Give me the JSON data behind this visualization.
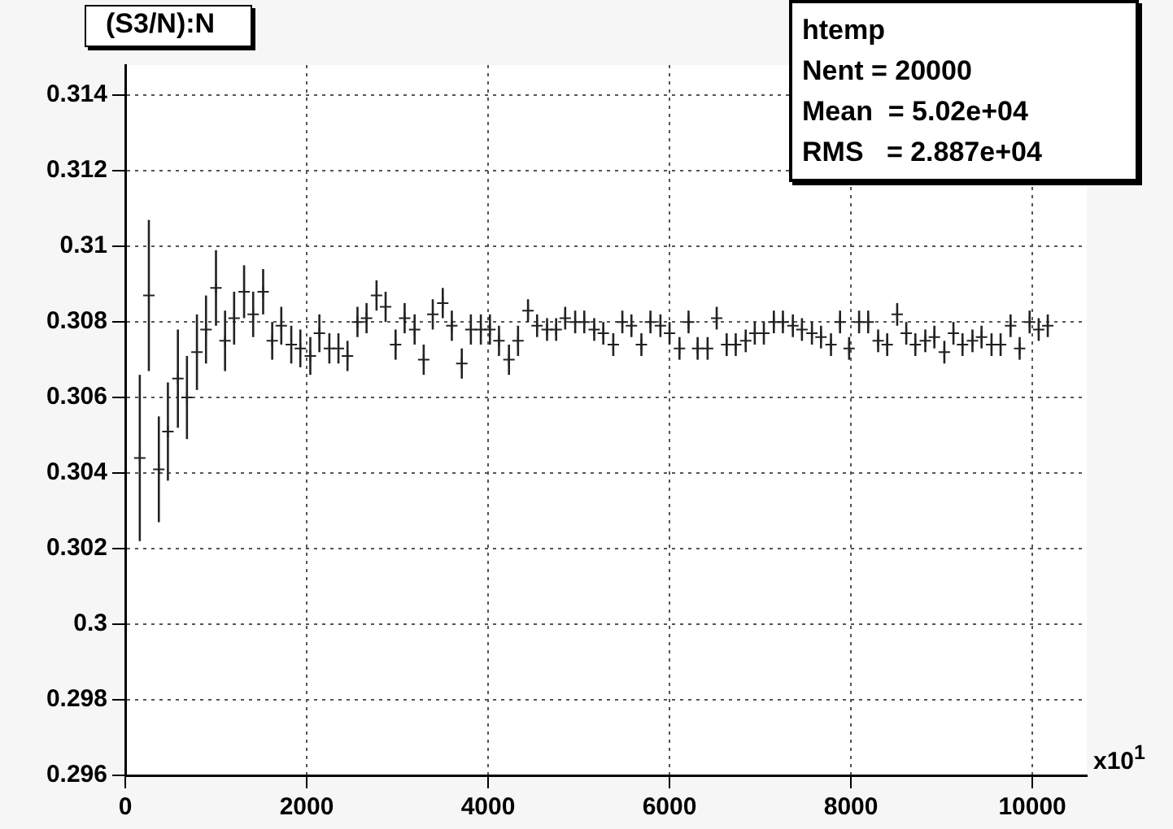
{
  "chart_data": {
    "type": "scatter",
    "title": "(S3/N):N",
    "marker": "cross",
    "grid": true,
    "legend": false,
    "annotations": [
      "htemp",
      "Nent = 20000",
      "Mean  = 5.02e+04",
      "RMS   = 2.887e+04",
      "x10$^{1}$"
    ],
    "xlim": [
      0,
      10600
    ],
    "xticks": [
      0,
      2000,
      4000,
      6000,
      8000,
      10000
    ],
    "ylim": [
      0.296,
      0.3148
    ],
    "yticks": [
      0.296,
      0.298,
      0.3,
      0.302,
      0.304,
      0.306,
      0.308,
      0.31,
      0.312,
      0.314
    ],
    "x": [
      160,
      260,
      370,
      470,
      580,
      680,
      790,
      890,
      1000,
      1100,
      1200,
      1310,
      1410,
      1520,
      1620,
      1720,
      1830,
      1930,
      2040,
      2140,
      2250,
      2350,
      2450,
      2560,
      2660,
      2770,
      2870,
      2980,
      3080,
      3190,
      3290,
      3390,
      3500,
      3600,
      3710,
      3810,
      3920,
      4020,
      4120,
      4230,
      4330,
      4440,
      4540,
      4650,
      4750,
      4850,
      4960,
      5060,
      5170,
      5270,
      5380,
      5480,
      5580,
      5690,
      5790,
      5900,
      6000,
      6110,
      6210,
      6310,
      6420,
      6520,
      6630,
      6730,
      6840,
      6940,
      7040,
      7150,
      7250,
      7360,
      7460,
      7570,
      7670,
      7780,
      7880,
      7980,
      8090,
      8190,
      8300,
      8400,
      8510,
      8610,
      8710,
      8820,
      8920,
      9030,
      9130,
      9230,
      9340,
      9440,
      9550,
      9650,
      9760,
      9860,
      9970,
      10070,
      10170
    ],
    "series": [
      {
        "color": "#222222",
        "values": [
          0.3044,
          0.3087,
          0.3041,
          0.3051,
          0.3065,
          0.306,
          0.3072,
          0.3078,
          0.3089,
          0.3075,
          0.3081,
          0.3088,
          0.3082,
          0.3088,
          0.3075,
          0.3079,
          0.3074,
          0.3073,
          0.3071,
          0.3077,
          0.3073,
          0.3073,
          0.3071,
          0.308,
          0.3081,
          0.3087,
          0.3084,
          0.3074,
          0.3081,
          0.3078,
          0.307,
          0.3082,
          0.3085,
          0.3079,
          0.3069,
          0.3078,
          0.3078,
          0.3078,
          0.3075,
          0.307,
          0.3075,
          0.3083,
          0.3079,
          0.3078,
          0.3078,
          0.3081,
          0.308,
          0.308,
          0.3078,
          0.3077,
          0.3074,
          0.308,
          0.3079,
          0.3074,
          0.308,
          0.3079,
          0.3077,
          0.3073,
          0.308,
          0.3073,
          0.3073,
          0.3081,
          0.3074,
          0.3074,
          0.3075,
          0.3077,
          0.3077,
          0.308,
          0.308,
          0.3079,
          0.3078,
          0.3077,
          0.3076,
          0.3074,
          0.308,
          0.3073,
          0.308,
          0.308,
          0.3075,
          0.3074,
          0.3082,
          0.3077,
          0.3074,
          0.3075,
          0.3076,
          0.3072,
          0.3077,
          0.3074,
          0.3075,
          0.3076,
          0.3074,
          0.3074,
          0.3079,
          0.3073,
          0.308,
          0.3078,
          0.3079
        ],
        "errors": [
          0.0022,
          0.002,
          0.0014,
          0.0013,
          0.0013,
          0.0011,
          0.001,
          0.0009,
          0.001,
          0.0008,
          0.0007,
          0.0007,
          0.0006,
          0.0006,
          0.0005,
          0.0005,
          0.0005,
          0.0005,
          0.0005,
          0.0005,
          0.0004,
          0.0004,
          0.0004,
          0.0004,
          0.0004,
          0.0004,
          0.0004,
          0.0004,
          0.0004,
          0.0004,
          0.0004,
          0.0004,
          0.0004,
          0.0004,
          0.0004,
          0.0004,
          0.0004,
          0.0004,
          0.0004,
          0.0004,
          0.0004,
          0.0003,
          0.0003,
          0.0003,
          0.0003,
          0.0003,
          0.0003,
          0.0003,
          0.0003,
          0.0003,
          0.0003,
          0.0003,
          0.0003,
          0.0003,
          0.0003,
          0.0003,
          0.0003,
          0.0003,
          0.0003,
          0.0003,
          0.0003,
          0.0003,
          0.0003,
          0.0003,
          0.0003,
          0.0003,
          0.0003,
          0.0003,
          0.0003,
          0.0003,
          0.0003,
          0.0003,
          0.0003,
          0.0003,
          0.0003,
          0.0003,
          0.0003,
          0.0003,
          0.0003,
          0.0003,
          0.0003,
          0.0003,
          0.0003,
          0.0003,
          0.0003,
          0.0003,
          0.0003,
          0.0003,
          0.0003,
          0.0003,
          0.0003,
          0.0003,
          0.0003,
          0.0003,
          0.0003,
          0.0003,
          0.0003
        ]
      }
    ]
  }
}
